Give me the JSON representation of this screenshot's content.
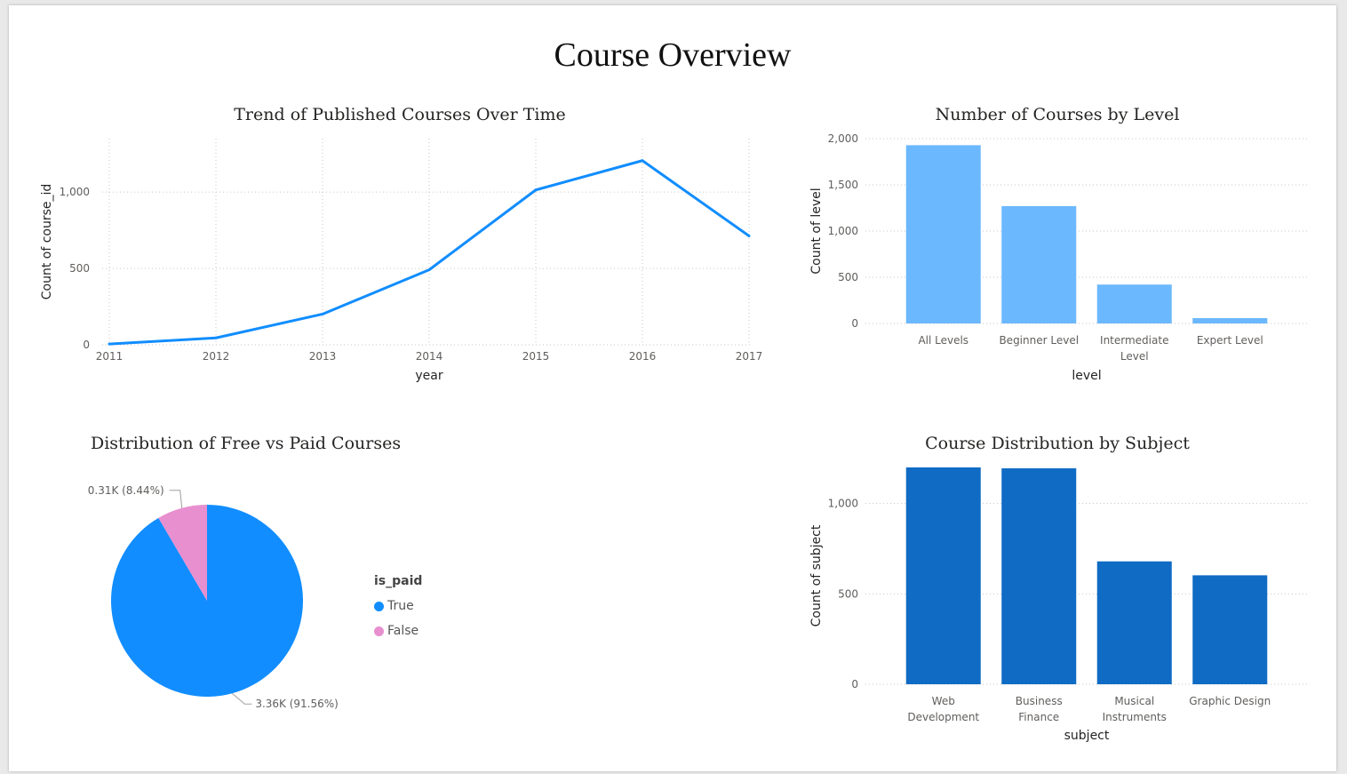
{
  "page": {
    "title": "Course Overview"
  },
  "colors": {
    "line": "#118dff",
    "level_bars": "#6cb8ff",
    "subject_bars": "#0f6bc4",
    "pie_true": "#118dff",
    "pie_false": "#e88fcf",
    "grid": "#c8c6c4"
  },
  "chart_data": [
    {
      "id": "trend",
      "type": "line",
      "title": "Trend of Published Courses Over Time",
      "xlabel": "year",
      "ylabel": "Count of course_id",
      "x": [
        "2011",
        "2012",
        "2013",
        "2014",
        "2015",
        "2016",
        "2017"
      ],
      "series": [
        {
          "values": [
            5,
            45,
            201,
            491,
            1014,
            1206,
            713
          ]
        }
      ],
      "yticks": [
        "0",
        "500",
        "1,000"
      ],
      "ytick_values": [
        0,
        500,
        1000
      ],
      "ylim": [
        0,
        1350
      ],
      "grid": true
    },
    {
      "id": "level",
      "type": "bar",
      "title": "Number of Courses by Level",
      "xlabel": "level",
      "ylabel": "Count of level",
      "categories": [
        [
          "All Levels"
        ],
        [
          "Beginner Level"
        ],
        [
          "Intermediate",
          "Level"
        ],
        [
          "Expert Level"
        ]
      ],
      "values": [
        1929,
        1270,
        421,
        58
      ],
      "yticks": [
        "0",
        "500",
        "1,000",
        "1,500",
        "2,000"
      ],
      "ytick_values": [
        0,
        500,
        1000,
        1500,
        2000
      ],
      "ylim": [
        0,
        2000
      ],
      "grid": true
    },
    {
      "id": "paid",
      "type": "pie",
      "title": "Distribution of Free vs Paid Courses",
      "legend_title": "is_paid",
      "legend_position": "right",
      "slices": [
        {
          "name": "True",
          "value": 3.36,
          "label": "3.36K (91.56%)"
        },
        {
          "name": "False",
          "value": 0.31,
          "label": "0.31K (8.44%)"
        }
      ]
    },
    {
      "id": "subject",
      "type": "bar",
      "title": "Course Distribution by Subject",
      "xlabel": "subject",
      "ylabel": "Count of subject",
      "categories": [
        [
          "Web",
          "Development"
        ],
        [
          "Business",
          "Finance"
        ],
        [
          "Musical",
          "Instruments"
        ],
        [
          "Graphic Design"
        ]
      ],
      "values": [
        1200,
        1195,
        680,
        603
      ],
      "yticks": [
        "0",
        "500",
        "1,000"
      ],
      "ytick_values": [
        0,
        500,
        1000
      ],
      "ylim": [
        0,
        1200
      ],
      "grid": true
    }
  ]
}
